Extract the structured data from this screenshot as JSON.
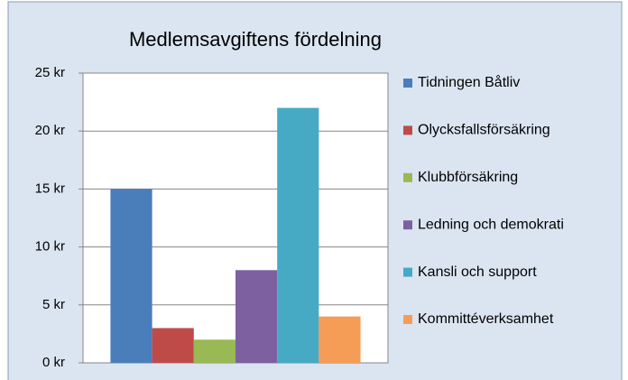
{
  "chart_data": {
    "type": "bar",
    "title": "Medlemsavgiftens fördelning",
    "categories": [
      null
    ],
    "series": [
      {
        "name": "Tidningen Båtliv",
        "color": "#4a7ebb",
        "values": [
          15
        ]
      },
      {
        "name": "Olycksfallsförsäkring",
        "color": "#be4b48",
        "values": [
          3
        ]
      },
      {
        "name": "Klubbförsäkring",
        "color": "#98b954",
        "values": [
          2
        ]
      },
      {
        "name": "Ledning och demokrati",
        "color": "#7d60a0",
        "values": [
          8
        ]
      },
      {
        "name": "Kansli och support",
        "color": "#46aac5",
        "values": [
          22
        ]
      },
      {
        "name": "Kommittéverksamhet",
        "color": "#f59d56",
        "values": [
          4
        ]
      }
    ],
    "ylim": [
      0,
      25
    ],
    "yticks": [
      {
        "value": 0,
        "label": "0 kr"
      },
      {
        "value": 5,
        "label": "5 kr"
      },
      {
        "value": 10,
        "label": "10 kr"
      },
      {
        "value": 15,
        "label": "15 kr"
      },
      {
        "value": 20,
        "label": "20 kr"
      },
      {
        "value": 25,
        "label": "25 kr"
      }
    ],
    "grid": true,
    "legend": "right"
  }
}
